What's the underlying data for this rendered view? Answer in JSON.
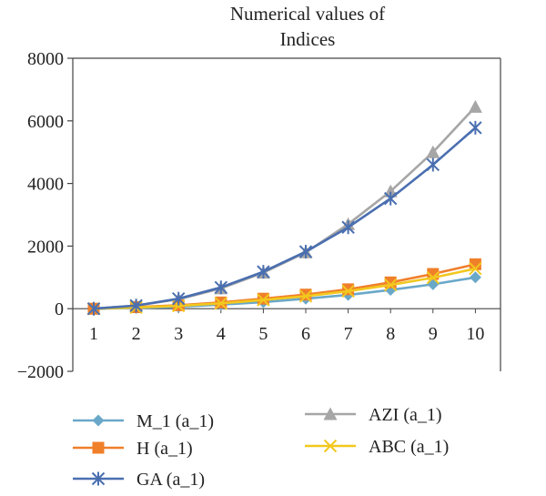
{
  "chart_data": {
    "type": "line",
    "title_lines": [
      "Numerical values of",
      "Indices"
    ],
    "xlabel": "",
    "ylabel": "",
    "x": [
      1,
      2,
      3,
      4,
      5,
      6,
      7,
      8,
      9,
      10
    ],
    "x_tick_labels": [
      "1",
      "2",
      "3",
      "4",
      "5",
      "6",
      "7",
      "8",
      "9",
      "10"
    ],
    "ylim": [
      -2000,
      8000
    ],
    "y_ticks": [
      -2000,
      0,
      2000,
      4000,
      6000,
      8000
    ],
    "y_tick_labels": [
      "−2000",
      "0",
      "2000",
      "4000",
      "6000",
      "8000"
    ],
    "grid": false,
    "legend_position": "bottom",
    "series": [
      {
        "name": "M_1 (a_1)",
        "color": "#6aa8c9",
        "marker": "diamond",
        "values": [
          0,
          20,
          60,
          130,
          210,
          320,
          440,
          600,
          780,
          1000
        ]
      },
      {
        "name": "AZI (a_1)",
        "color": "#a6a6a6",
        "marker": "triangle",
        "values": [
          0,
          100,
          300,
          650,
          1150,
          1800,
          2700,
          3750,
          5000,
          6450
        ]
      },
      {
        "name": "H (a_1)",
        "color": "#f07f2a",
        "marker": "square",
        "values": [
          0,
          50,
          110,
          200,
          320,
          450,
          620,
          840,
          1110,
          1420
        ]
      },
      {
        "name": "ABC (a_1)",
        "color": "#f2c81e",
        "marker": "x",
        "values": [
          0,
          40,
          90,
          170,
          280,
          400,
          560,
          760,
          990,
          1280
        ]
      },
      {
        "name": "GA (a_1)",
        "color": "#4a6fb0",
        "marker": "asterisk",
        "values": [
          0,
          100,
          320,
          680,
          1180,
          1820,
          2600,
          3520,
          4600,
          5780
        ]
      }
    ]
  }
}
